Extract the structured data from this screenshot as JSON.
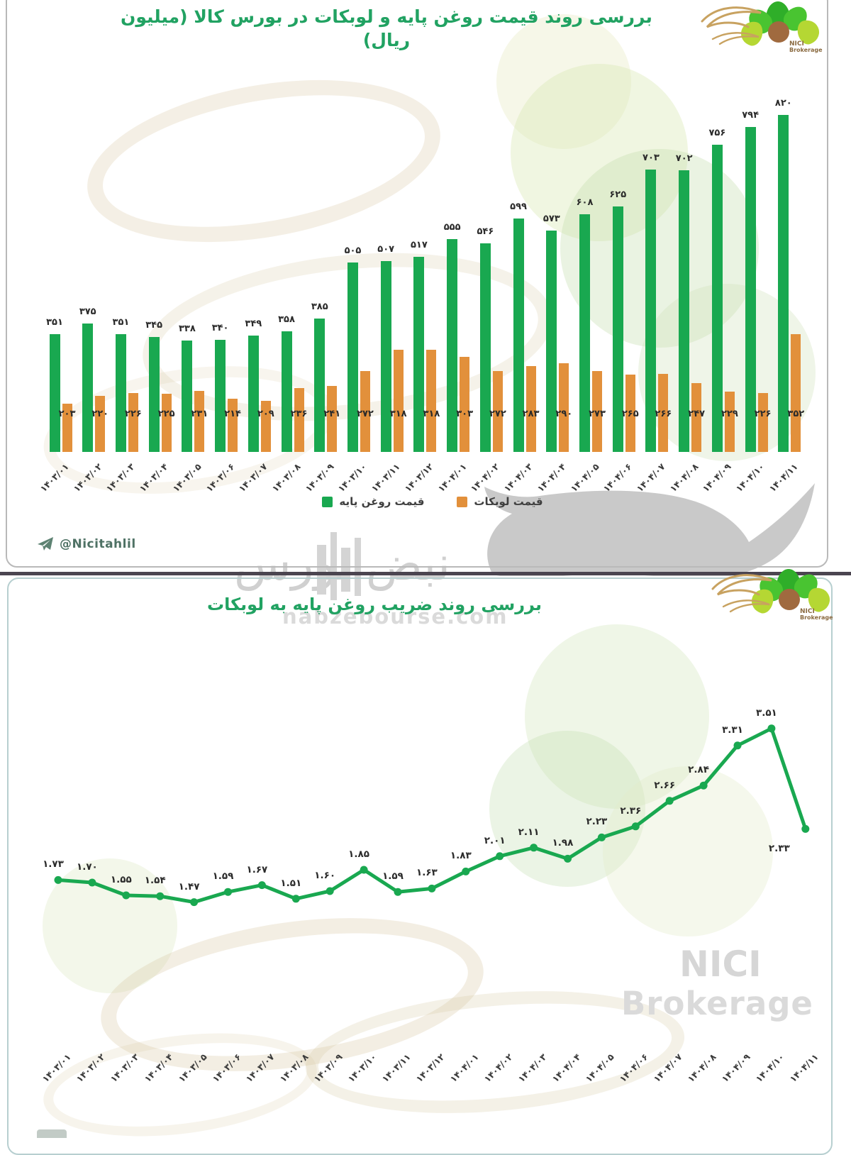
{
  "top_chart": {
    "title": "بررسی روند قیمت روغن پایه و لوبکات در بورس کالا  (میلیون ریال)",
    "telegram_handle": "@Nicitahlil"
  },
  "bottom_chart": {
    "title": "بررسی روند ضریب روغن پایه به لوبکات"
  },
  "branding": {
    "logo_line1": "NICI",
    "logo_line2": "Brokerage",
    "watermark_name": "نبض بورس",
    "watermark_url": "nabzebourse.com",
    "watermark_nici_line1": "NICI",
    "watermark_nici_line2": "Brokerage"
  },
  "colors": {
    "base_oil_green": "#19a850",
    "lubricant_orange": "#e2903b",
    "title_green": "#21a262",
    "label_dark": "#2b2b2b"
  },
  "chart_data": [
    {
      "type": "bar",
      "title": "بررسی روند قیمت روغن پایه و لوبکات در بورس کالا  (میلیون ریال)",
      "unit": "میلیون ریال",
      "categories": [
        "۱۴۰۳/۰۱",
        "۱۴۰۳/۰۲",
        "۱۴۰۳/۰۳",
        "۱۴۰۳/۰۴",
        "۱۴۰۳/۰۵",
        "۱۴۰۳/۰۶",
        "۱۴۰۳/۰۷",
        "۱۴۰۳/۰۸",
        "۱۴۰۳/۰۹",
        "۱۴۰۳/۱۰",
        "۱۴۰۳/۱۱",
        "۱۴۰۳/۱۲",
        "۱۴۰۴/۰۱",
        "۱۴۰۴/۰۲",
        "۱۴۰۴/۰۳",
        "۱۴۰۴/۰۴",
        "۱۴۰۴/۰۵",
        "۱۴۰۴/۰۶",
        "۱۴۰۴/۰۷",
        "۱۴۰۴/۰۸",
        "۱۴۰۴/۰۹",
        "۱۴۰۴/۱۰",
        "۱۴۰۴/۱۱"
      ],
      "series": [
        {
          "name": "قیمت روغن پایه",
          "color": "#19a850",
          "values": [
            351,
            375,
            351,
            345,
            338,
            340,
            349,
            358,
            385,
            505,
            507,
            517,
            555,
            546,
            599,
            573,
            608,
            625,
            703,
            702,
            756,
            794,
            820
          ],
          "labels": [
            "۳۵۱",
            "۳۷۵",
            "۳۵۱",
            "۳۴۵",
            "۳۳۸",
            "۳۴۰",
            "۳۴۹",
            "۳۵۸",
            "۳۸۵",
            "۵۰۵",
            "۵۰۷",
            "۵۱۷",
            "۵۵۵",
            "۵۴۶",
            "۵۹۹",
            "۵۷۳",
            "۶۰۸",
            "۶۲۵",
            "۷۰۳",
            "۷۰۲",
            "۷۵۶",
            "۷۹۴",
            "۸۲۰"
          ]
        },
        {
          "name": "قیمت لوبکات",
          "color": "#e2903b",
          "values": [
            203,
            220,
            226,
            225,
            231,
            214,
            209,
            236,
            241,
            272,
            318,
            318,
            303,
            272,
            283,
            290,
            273,
            265,
            266,
            247,
            229,
            226,
            352
          ],
          "labels": [
            "۲۰۳",
            "۲۲۰",
            "۲۲۶",
            "۲۲۵",
            "۲۳۱",
            "۲۱۴",
            "۲۰۹",
            "۲۳۶",
            "۲۴۱",
            "۲۷۲",
            "۳۱۸",
            "۳۱۸",
            "۳۰۳",
            "۲۷۲",
            "۲۸۳",
            "۲۹۰",
            "۲۷۳",
            "۲۶۵",
            "۲۶۶",
            "۲۴۷",
            "۲۲۹",
            "۲۲۶",
            "۳۵۲"
          ]
        }
      ],
      "ylim": [
        0,
        900
      ],
      "grid": false,
      "legend_position": "bottom"
    },
    {
      "type": "line",
      "title": "بررسی روند ضریب روغن پایه به لوبکات",
      "categories": [
        "۱۴۰۳/۰۱",
        "۱۴۰۳/۰۲",
        "۱۴۰۳/۰۳",
        "۱۴۰۳/۰۴",
        "۱۴۰۳/۰۵",
        "۱۴۰۳/۰۶",
        "۱۴۰۳/۰۷",
        "۱۴۰۳/۰۸",
        "۱۴۰۳/۰۹",
        "۱۴۰۳/۱۰",
        "۱۴۰۳/۱۱",
        "۱۴۰۳/۱۲",
        "۱۴۰۴/۰۱",
        "۱۴۰۴/۰۲",
        "۱۴۰۴/۰۳",
        "۱۴۰۴/۰۴",
        "۱۴۰۴/۰۵",
        "۱۴۰۴/۰۶",
        "۱۴۰۴/۰۷",
        "۱۴۰۴/۰۸",
        "۱۴۰۴/۰۹",
        "۱۴۰۴/۱۰",
        "۱۴۰۴/۱۱"
      ],
      "values": [
        1.73,
        1.7,
        1.55,
        1.54,
        1.47,
        1.59,
        1.67,
        1.51,
        1.6,
        1.85,
        1.59,
        1.63,
        1.83,
        2.01,
        2.11,
        1.98,
        2.23,
        2.36,
        2.66,
        2.84,
        3.31,
        3.51,
        2.33
      ],
      "labels": [
        "۱.۷۳",
        "۱.۷۰",
        "۱.۵۵",
        "۱.۵۴",
        "۱.۴۷",
        "۱.۵۹",
        "۱.۶۷",
        "۱.۵۱",
        "۱.۶۰",
        "۱.۸۵",
        "۱.۵۹",
        "۱.۶۳",
        "۱.۸۳",
        "۲.۰۱",
        "۲.۱۱",
        "۱.۹۸",
        "۲.۲۳",
        "۲.۳۶",
        "۲.۶۶",
        "۲.۸۴",
        "۳.۳۱",
        "۳.۵۱",
        "۲.۳۳"
      ],
      "color": "#19a850",
      "ylim": [
        1.2,
        3.8
      ],
      "grid": false
    }
  ]
}
